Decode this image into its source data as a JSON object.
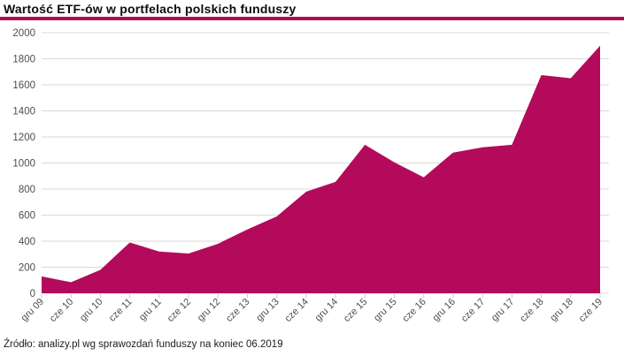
{
  "title": "Wartość ETF-ów w portfelach polskich funduszy",
  "footer": "Źródło: analizy.pl wg sprawozdań funduszy na koniec 06.2019",
  "colors": {
    "accent": "#b30a5b",
    "grid": "#d9d9d9",
    "tick": "#c9c9c9",
    "axis_text": "#4d4d4d",
    "title_text": "#0d0d0d",
    "footer_text": "#1c1c1c",
    "background": "#ffffff"
  },
  "chart_data": {
    "type": "area",
    "title": "Wartość ETF-ów w portfelach polskich funduszy",
    "xlabel": "",
    "ylabel": "",
    "categories": [
      "gru 09",
      "cze 10",
      "gru 10",
      "cze 11",
      "gru 11",
      "cze 12",
      "gru 12",
      "cze 13",
      "gru 13",
      "cze 14",
      "gru 14",
      "cze 15",
      "gru 15",
      "cze 16",
      "gru 16",
      "cze 17",
      "gru 17",
      "cze 18",
      "gru 18",
      "cze 19"
    ],
    "values": [
      130,
      85,
      180,
      390,
      320,
      305,
      380,
      490,
      590,
      780,
      855,
      1140,
      1005,
      890,
      1080,
      1120,
      1140,
      1675,
      1650,
      1900
    ],
    "ylim": [
      0,
      2000
    ],
    "ytick_step": 200,
    "yticks": [
      0,
      200,
      400,
      600,
      800,
      1000,
      1200,
      1400,
      1600,
      1800,
      2000
    ],
    "grid": "horizontal",
    "legend": "none",
    "x_label_rotation": -45,
    "source": "Źródło: analizy.pl wg sprawozdań funduszy na koniec 06.2019"
  }
}
